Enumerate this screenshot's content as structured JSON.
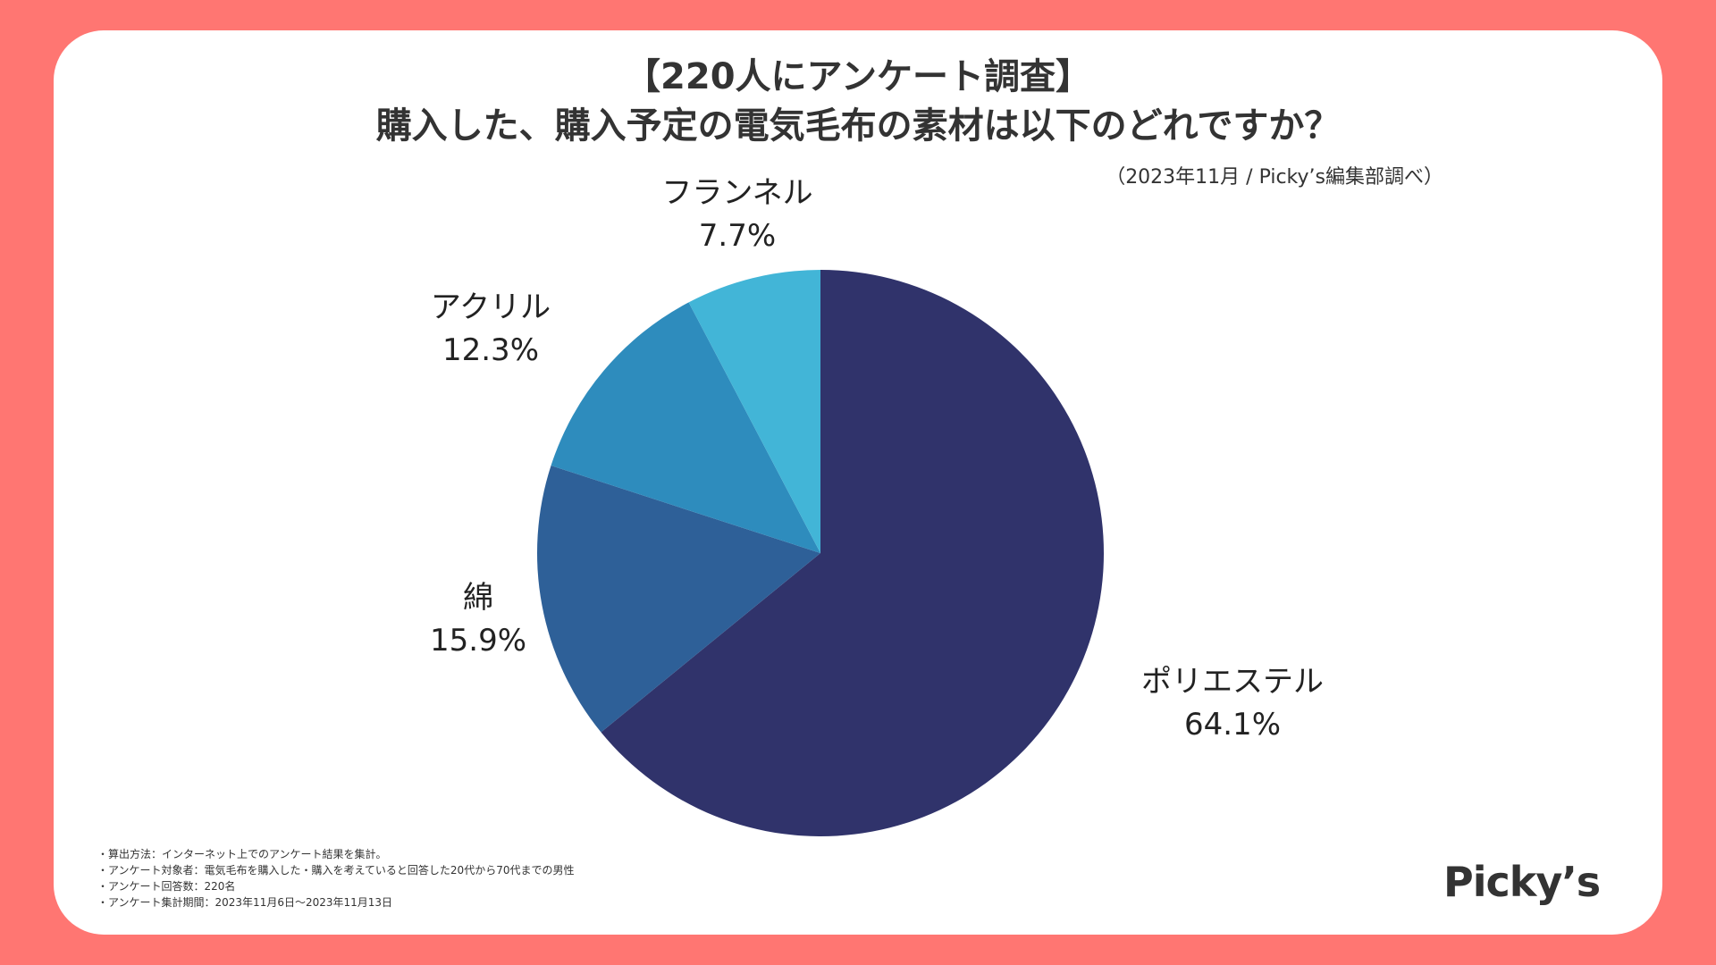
{
  "header": {
    "title_line1": "【220人にアンケート調査】",
    "title_line2": "購入した、購入予定の電気毛布の素材は以下のどれですか？",
    "source": "（2023年11月 / Picky’s編集部調べ）"
  },
  "chart_data": {
    "type": "pie",
    "title": "購入した、購入予定の電気毛布の素材は以下のどれですか？",
    "start_angle_deg": 0,
    "direction": "clockwise",
    "slices": [
      {
        "label": "ポリエステル",
        "value": 64.1,
        "value_label": "64.1%",
        "color": "#30336B"
      },
      {
        "label": "綿",
        "value": 15.9,
        "value_label": "15.9%",
        "color": "#2E6098"
      },
      {
        "label": "アクリル",
        "value": 12.3,
        "value_label": "12.3%",
        "color": "#2E8CBD"
      },
      {
        "label": "フランネル",
        "value": 7.7,
        "value_label": "7.7%",
        "color": "#42B5D7"
      }
    ]
  },
  "footer": {
    "notes": [
      "・算出方法：インターネット上でのアンケート結果を集計。",
      "・アンケート対象者：電気毛布を購入した・購入を考えていると回答した20代から70代までの男性",
      "・アンケート回答数：220名",
      "・アンケート集計期間：2023年11月6日〜2023年11月13日"
    ],
    "logo": "Picky’s"
  },
  "colors": {
    "background": "#FF7672",
    "card": "#FFFFFF",
    "text": "#333333"
  }
}
